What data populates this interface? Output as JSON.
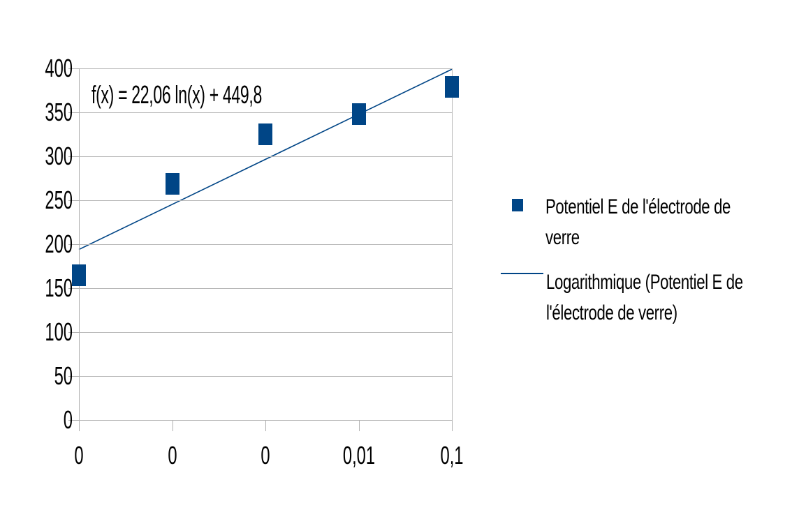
{
  "chart_data": {
    "type": "scatter",
    "title": "",
    "xlabel": "",
    "ylabel": "",
    "categories": [
      "0",
      "0",
      "0",
      "0,01",
      "0,1"
    ],
    "y_tick_labels": [
      "400",
      "350",
      "300",
      "250",
      "200",
      "150",
      "100",
      "50",
      "0"
    ],
    "ylim": [
      0,
      400
    ],
    "y_tick_step": 50,
    "grid": "horizontal-only",
    "legend_position": "right",
    "series": [
      {
        "name": "Potentiel E de l'électrode de verre",
        "marker": "square",
        "values": [
          165,
          269,
          325,
          348,
          379
        ]
      }
    ],
    "trendline": {
      "name": "Logarithmique (Potentiel E de l'électrode de verre)",
      "equation": "f(x) = 22,06 ln(x) + 449,8",
      "y_start": 194,
      "y_end": 399
    },
    "colors": {
      "series": "#004586",
      "trendline": "#004586",
      "grid": "#b8b8b8",
      "axis": "#b0b0b0",
      "text": "#000000"
    }
  },
  "legend": {
    "series_line1": "Potentiel E de l'électrode de",
    "series_line2": "verre",
    "trend_line1": "Logarithmique (Potentiel E de",
    "trend_line2": "l'électrode de verre)",
    "series_swatch": "square-marker-icon",
    "trend_swatch": "line-marker-icon"
  }
}
